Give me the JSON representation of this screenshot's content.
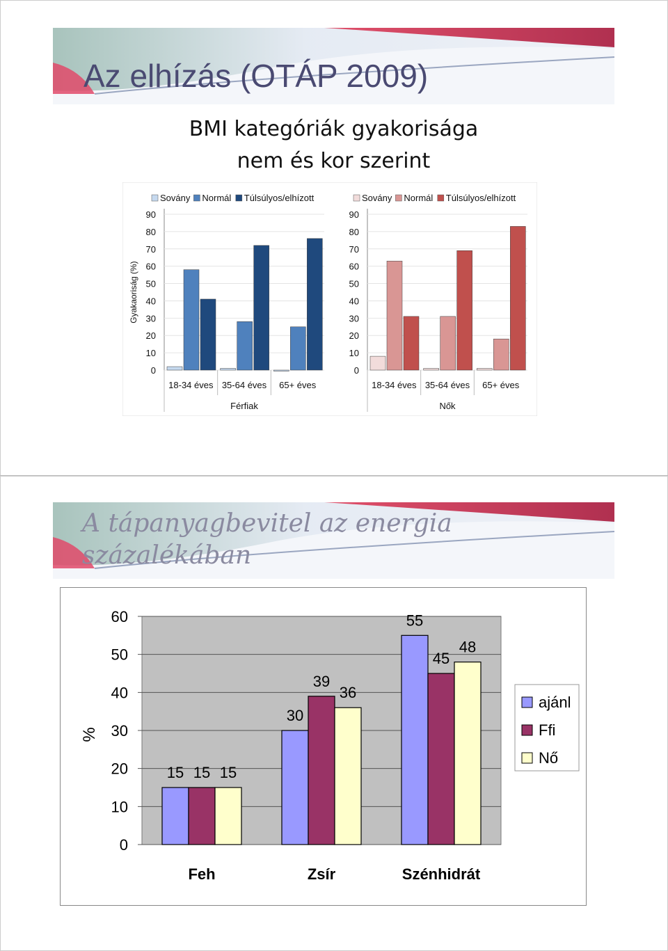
{
  "slide1": {
    "title": "Az elhízás (OTÁP 2009)",
    "heading_line1": "BMI kategóriák gyakorisága",
    "heading_line2": "nem és kor szerint"
  },
  "slide2": {
    "title_line1": "A tápanyagbevitel az energia",
    "title_line2": "százalékában"
  },
  "colors": {
    "men_sovany": "#c6d9ef",
    "men_normal": "#4f81bd",
    "men_tulsulyos": "#1f497d",
    "women_sovany": "#f2dcdb",
    "women_normal": "#d99694",
    "women_tulsulyos": "#c0504d",
    "ajanl": "#9999ff",
    "ffi": "#993366",
    "no": "#ffffcc"
  },
  "chart_data": [
    {
      "type": "bar",
      "ylabel": "Gyakaoriság (%)",
      "xlabel": "Férfiak",
      "ylim": [
        0,
        90
      ],
      "yticks": [
        "0",
        "10",
        "20",
        "30",
        "40",
        "50",
        "60",
        "70",
        "80",
        "90"
      ],
      "categories": [
        "18-34 éves",
        "35-64 éves",
        "65+ éves"
      ],
      "series": [
        {
          "name": "Sovány",
          "values": [
            2,
            1,
            0
          ]
        },
        {
          "name": "Normál",
          "values": [
            58,
            28,
            25
          ]
        },
        {
          "name": "Túlsúlyos/elhízott",
          "values": [
            41,
            72,
            76
          ]
        }
      ],
      "legend": "top"
    },
    {
      "type": "bar",
      "xlabel": "Nők",
      "ylim": [
        0,
        90
      ],
      "yticks": [
        "0",
        "10",
        "20",
        "30",
        "40",
        "50",
        "60",
        "70",
        "80",
        "90"
      ],
      "categories": [
        "18-34 éves",
        "35-64 éves",
        "65+ éves"
      ],
      "series": [
        {
          "name": "Sovány",
          "values": [
            8,
            1,
            1
          ]
        },
        {
          "name": "Normál",
          "values": [
            63,
            31,
            18
          ]
        },
        {
          "name": "Túlsúlyos/elhízott",
          "values": [
            31,
            69,
            83
          ]
        }
      ],
      "legend": "top"
    },
    {
      "type": "bar",
      "ylabel": "%",
      "ylim": [
        0,
        60
      ],
      "yticks": [
        "0",
        "10",
        "20",
        "30",
        "40",
        "50",
        "60"
      ],
      "categories": [
        "Feh",
        "Zsír",
        "Szénhidrát"
      ],
      "series": [
        {
          "name": "ajánl",
          "values": [
            15,
            30,
            55
          ]
        },
        {
          "name": "Ffi",
          "values": [
            15,
            39,
            45
          ]
        },
        {
          "name": "Nő",
          "values": [
            15,
            36,
            48
          ]
        }
      ],
      "data_labels": [
        [
          "15",
          "15",
          "15"
        ],
        [
          "30",
          "39",
          "36"
        ],
        [
          "55",
          "45",
          "48"
        ]
      ],
      "legend": "right",
      "grid": true
    }
  ]
}
